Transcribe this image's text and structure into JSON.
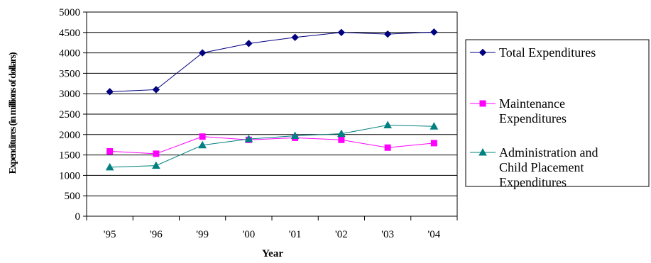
{
  "chart_data": {
    "type": "line",
    "title": "",
    "xlabel": "Year",
    "ylabel": "Expenditures (in millions of dollars)",
    "categories": [
      "'95",
      "'96",
      "'99",
      "'00",
      "'01",
      "'02",
      "'03",
      "'04"
    ],
    "ylim": [
      0,
      5000
    ],
    "yticks": [
      0,
      500,
      1000,
      1500,
      2000,
      2500,
      3000,
      3500,
      4000,
      4500,
      5000
    ],
    "grid": true,
    "legend_position": "right",
    "series": [
      {
        "name": "Total Expenditures",
        "legend_lines": [
          "Total Expenditures"
        ],
        "color": "#000080",
        "marker": "diamond",
        "values": [
          3050,
          3100,
          4000,
          4230,
          4380,
          4500,
          4460,
          4510
        ]
      },
      {
        "name": "Maintenance Expenditures",
        "legend_lines": [
          "Maintenance",
          "Expenditures"
        ],
        "color": "#ff00ff",
        "marker": "square",
        "values": [
          1590,
          1530,
          1950,
          1870,
          1920,
          1870,
          1680,
          1790
        ]
      },
      {
        "name": "Administration and Child Placement Expenditures",
        "legend_lines": [
          "Administration and",
          "Child Placement",
          "Expenditures"
        ],
        "color": "#008080",
        "marker": "triangle",
        "values": [
          1200,
          1240,
          1740,
          1890,
          1970,
          2020,
          2230,
          2200
        ]
      }
    ]
  }
}
